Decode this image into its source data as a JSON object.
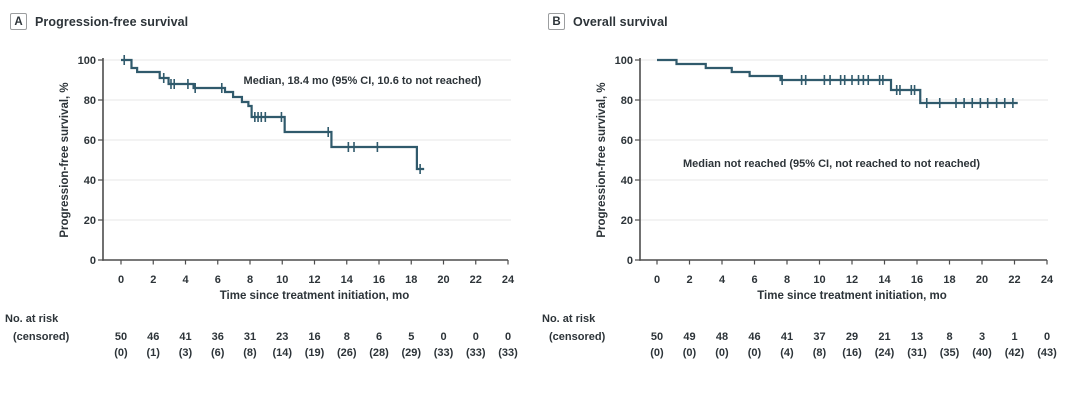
{
  "colors": {
    "curve": "#305A6C",
    "text": "#2D3439",
    "grid": "#ECECEC",
    "axis": "#4D4D4D",
    "badge_border": "#9C9EA0",
    "background": "#FFFFFF"
  },
  "chart_data": [
    {
      "type": "line",
      "subtype": "kaplan-meier-step",
      "panel_letter": "A",
      "title": "Progression-free survival",
      "annotation": {
        "text": "Median, 18.4 mo (95% CI, 10.6 to not reached)",
        "x_mo": 7.6,
        "y_pct": 90
      },
      "xlabel": "Time since treatment initiation, mo",
      "ylabel": "Progression-free survival, %",
      "xlim": [
        0,
        24
      ],
      "ylim": [
        0,
        100
      ],
      "xticks": [
        0,
        2,
        4,
        6,
        8,
        10,
        12,
        14,
        16,
        18,
        20,
        22,
        24
      ],
      "yticks": [
        0,
        20,
        40,
        60,
        80,
        100
      ],
      "grid": "horizontal",
      "km": {
        "start_pct": 100,
        "end_mo": 18.8,
        "steps": [
          [
            0.65,
            96
          ],
          [
            1.0,
            94
          ],
          [
            2.4,
            91
          ],
          [
            2.95,
            88
          ],
          [
            4.5,
            86
          ],
          [
            6.45,
            84
          ],
          [
            6.95,
            81.5
          ],
          [
            7.5,
            79
          ],
          [
            7.9,
            77
          ],
          [
            8.1,
            71.5
          ],
          [
            10.15,
            64
          ],
          [
            13.05,
            56.5
          ],
          [
            18.35,
            45.5
          ]
        ],
        "censors": [
          [
            0.2,
            100
          ],
          [
            2.65,
            91
          ],
          [
            3.1,
            88
          ],
          [
            3.3,
            88
          ],
          [
            4.15,
            88
          ],
          [
            4.6,
            86
          ],
          [
            6.25,
            86
          ],
          [
            8.3,
            71.5
          ],
          [
            8.5,
            71.5
          ],
          [
            8.7,
            71.5
          ],
          [
            8.95,
            71.5
          ],
          [
            9.95,
            71.5
          ],
          [
            12.85,
            64
          ],
          [
            14.1,
            56.5
          ],
          [
            14.45,
            56.5
          ],
          [
            15.9,
            56.5
          ],
          [
            18.55,
            45.5
          ]
        ]
      },
      "at_risk": {
        "row1_label": "No. at risk",
        "row2_label": "(censored)",
        "times": [
          0,
          2,
          4,
          6,
          8,
          10,
          12,
          14,
          16,
          18,
          20,
          22,
          24
        ],
        "n": [
          "50",
          "46",
          "41",
          "36",
          "31",
          "23",
          "16",
          "8",
          "6",
          "5",
          "0",
          "0",
          "0"
        ],
        "censored": [
          "(0)",
          "(1)",
          "(3)",
          "(6)",
          "(8)",
          "(14)",
          "(19)",
          "(26)",
          "(28)",
          "(29)",
          "(33)",
          "(33)",
          "(33)"
        ]
      }
    },
    {
      "type": "line",
      "subtype": "kaplan-meier-step",
      "panel_letter": "B",
      "title": "Overall survival",
      "annotation": {
        "text": "Median not reached (95% CI, not reached to not reached)",
        "x_mo": 1.6,
        "y_pct": 48.5
      },
      "xlabel": "Time since treatment initiation, mo",
      "ylabel": "Progression-free survival, %",
      "xlim": [
        0,
        24
      ],
      "ylim": [
        0,
        100
      ],
      "xticks": [
        0,
        2,
        4,
        6,
        8,
        10,
        12,
        14,
        16,
        18,
        20,
        22,
        24
      ],
      "yticks": [
        0,
        20,
        40,
        60,
        80,
        100
      ],
      "grid": "horizontal",
      "km": {
        "start_pct": 100,
        "end_mo": 22.2,
        "steps": [
          [
            1.2,
            98
          ],
          [
            3.0,
            96
          ],
          [
            4.6,
            94
          ],
          [
            5.7,
            92
          ],
          [
            7.6,
            90
          ],
          [
            14.4,
            85
          ],
          [
            16.2,
            78.5
          ]
        ],
        "censors": [
          [
            7.7,
            90
          ],
          [
            8.9,
            90
          ],
          [
            9.15,
            90
          ],
          [
            10.3,
            90
          ],
          [
            10.65,
            90
          ],
          [
            11.3,
            90
          ],
          [
            11.55,
            90
          ],
          [
            12.0,
            90
          ],
          [
            12.4,
            90
          ],
          [
            12.7,
            90
          ],
          [
            13.0,
            90
          ],
          [
            13.7,
            90
          ],
          [
            13.9,
            90
          ],
          [
            14.75,
            85
          ],
          [
            14.95,
            85
          ],
          [
            15.65,
            85
          ],
          [
            15.85,
            85
          ],
          [
            16.6,
            78.5
          ],
          [
            17.4,
            78.5
          ],
          [
            18.4,
            78.5
          ],
          [
            18.9,
            78.5
          ],
          [
            19.4,
            78.5
          ],
          [
            19.9,
            78.5
          ],
          [
            20.35,
            78.5
          ],
          [
            20.9,
            78.5
          ],
          [
            21.4,
            78.5
          ],
          [
            21.9,
            78.5
          ]
        ]
      },
      "at_risk": {
        "row1_label": "No. at risk",
        "row2_label": "(censored)",
        "times": [
          0,
          2,
          4,
          6,
          8,
          10,
          12,
          14,
          16,
          18,
          20,
          22,
          24
        ],
        "n": [
          "50",
          "49",
          "48",
          "46",
          "41",
          "37",
          "29",
          "21",
          "13",
          "8",
          "3",
          "1",
          "0"
        ],
        "censored": [
          "(0)",
          "(0)",
          "(0)",
          "(0)",
          "(4)",
          "(8)",
          "(16)",
          "(24)",
          "(31)",
          "(35)",
          "(40)",
          "(42)",
          "(43)"
        ]
      }
    }
  ]
}
